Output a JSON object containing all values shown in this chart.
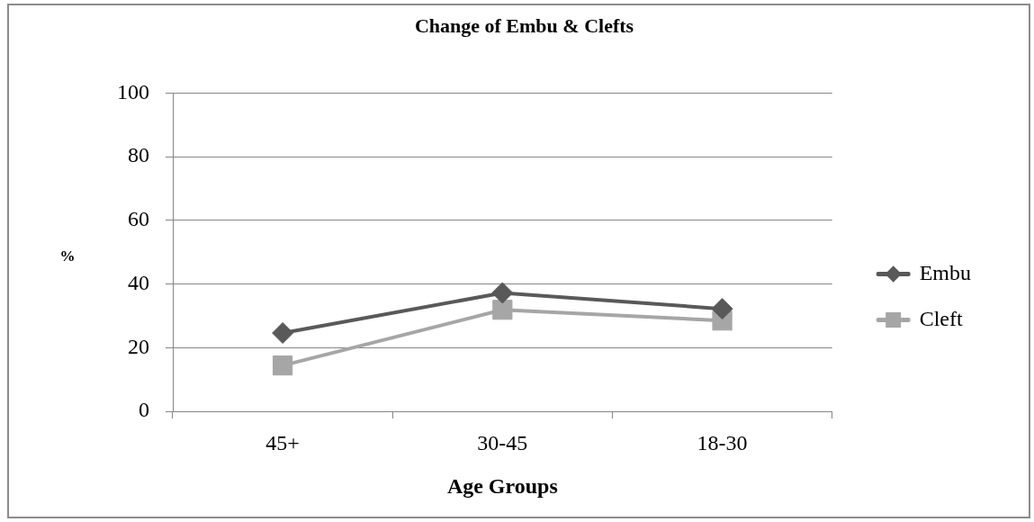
{
  "chart_data": {
    "type": "line",
    "title": "Change of Embu & Clefts",
    "xlabel": "Age Groups",
    "ylabel": "%",
    "categories": [
      "45+",
      "30-45",
      "18-30"
    ],
    "series": [
      {
        "name": "Embu",
        "color": "#595959",
        "marker": "diamond",
        "values": [
          24.6,
          37.2,
          32.2
        ]
      },
      {
        "name": "Cleft",
        "color": "#a6a6a6",
        "marker": "square",
        "values": [
          14.4,
          31.9,
          28.5
        ]
      }
    ],
    "ylim": [
      0,
      100
    ],
    "yticks": [
      0,
      20,
      40,
      60,
      80,
      100
    ],
    "grid": "y",
    "legend": "right"
  }
}
